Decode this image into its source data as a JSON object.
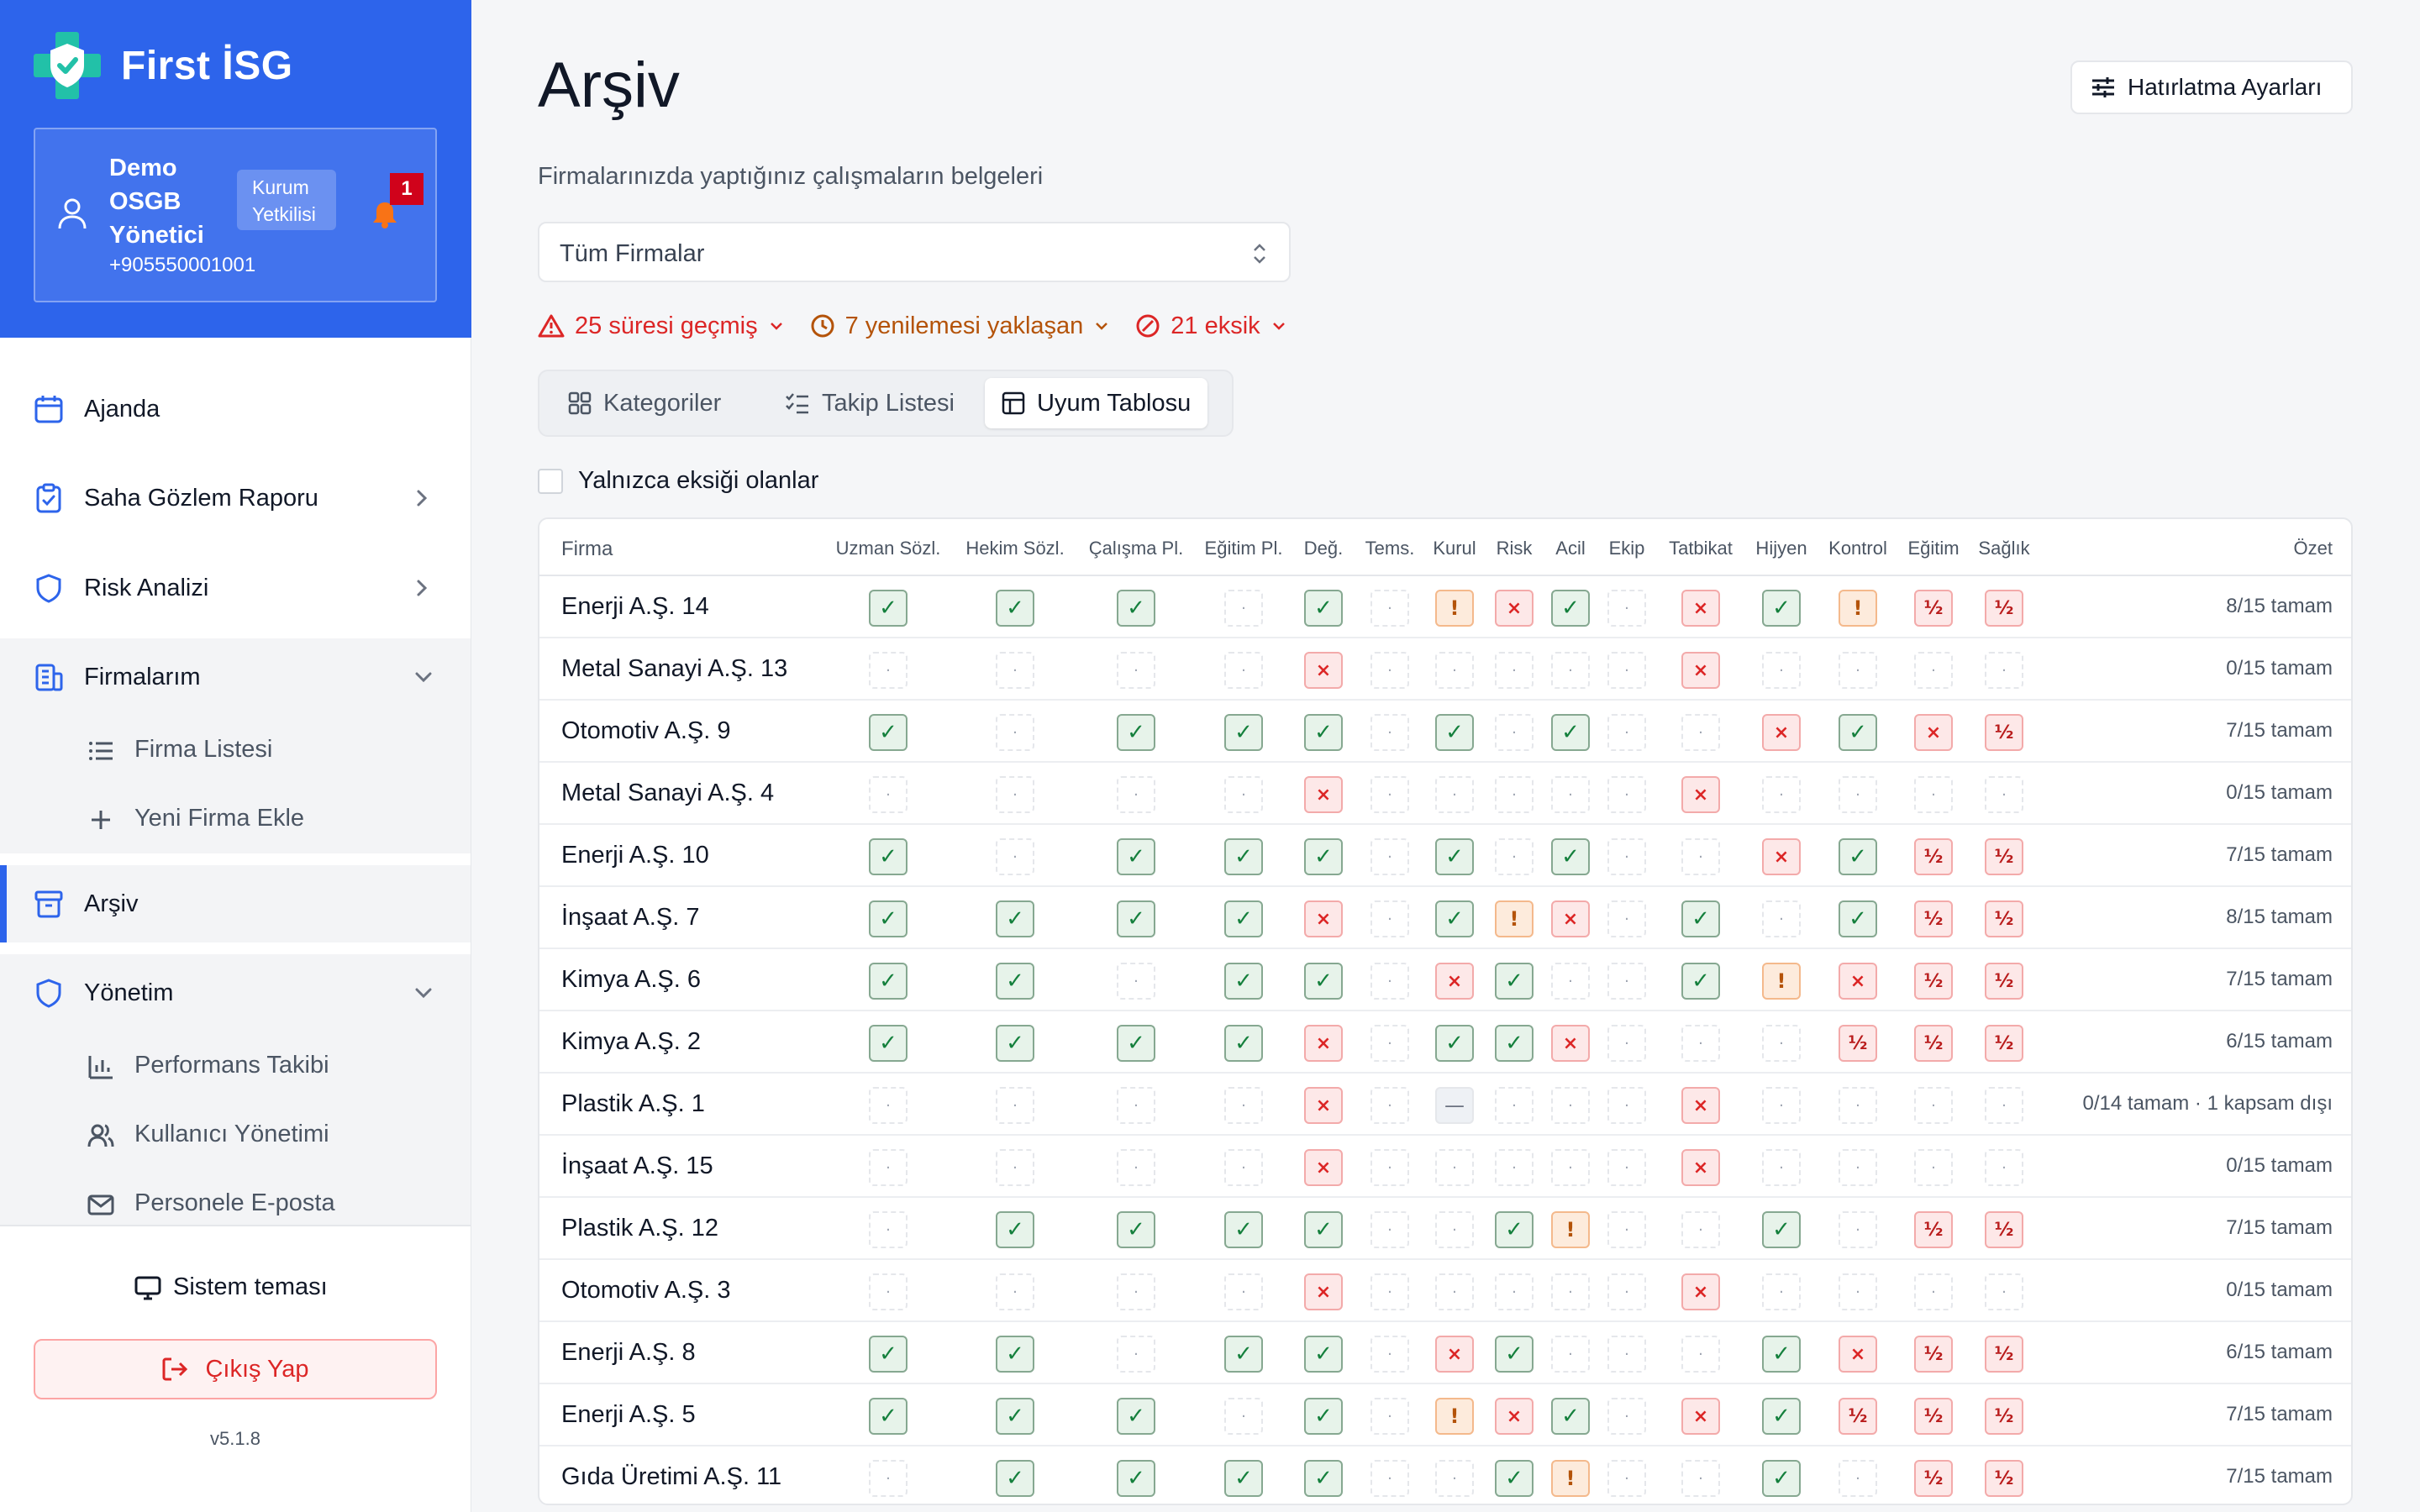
{
  "app": {
    "name": "First İSG",
    "version": "v5.1.8"
  },
  "user": {
    "name": "Demo OSGB Yönetici",
    "role": "Kurum Yetkilisi",
    "phone": "+905550001001",
    "notifications": "1"
  },
  "nav": {
    "ajanda": "Ajanda",
    "saha": "Saha Gözlem Raporu",
    "risk": "Risk Analizi",
    "firmalarim": "Firmalarım",
    "firma_listesi": "Firma Listesi",
    "yeni_firma": "Yeni Firma Ekle",
    "arsiv": "Arşiv",
    "yonetim": "Yönetim",
    "performans": "Performans Takibi",
    "kullanici": "Kullanıcı Yönetimi",
    "eposta": "Personele E-posta"
  },
  "bottom": {
    "theme": "Sistem teması",
    "logout": "Çıkış Yap"
  },
  "page": {
    "title": "Arşiv",
    "subtitle": "Firmalarınızda yaptığınız çalışmaların belgeleri",
    "reminder_btn": "Hatırlatma Ayarları",
    "firm_select": "Tüm Firmalar",
    "filters": {
      "expired": "25 süresi geçmiş",
      "upcoming": "7 yenilemesi yaklaşan",
      "missing": "21 eksik"
    },
    "tabs": {
      "categories": "Kategoriler",
      "tracking": "Takip Listesi",
      "compliance": "Uyum Tablosu"
    },
    "only_missing": "Yalnızca eksiği olanlar"
  },
  "colors": {
    "brand": "#2d64eb",
    "danger": "#dc2626",
    "upcoming": "#b45309",
    "ok": "#15803d"
  },
  "table": {
    "firm_header": "Firma",
    "summary_header": "Özet",
    "columns": [
      "Uzman Sözl.",
      "Hekim Sözl.",
      "Çalışma Pl.",
      "Eğitim Pl.",
      "Değ.",
      "Tems.",
      "Kurul",
      "Risk",
      "Acil",
      "Ekip",
      "Tatbikat",
      "Hijyen",
      "Kontrol",
      "Eğitim",
      "Sağlık"
    ],
    "symbols": {
      "ok": "✓",
      "x": "×",
      "warn": "!",
      "half": "½",
      "empty": "·",
      "na": "—"
    },
    "rows": [
      {
        "firm": "Enerji A.Ş. 14",
        "summary": "8/15 tamam",
        "cells": [
          "ok",
          "ok",
          "ok",
          "empty",
          "ok",
          "empty",
          "warn",
          "x",
          "ok",
          "empty",
          "x",
          "ok",
          "warn",
          "half",
          "half"
        ]
      },
      {
        "firm": "Metal Sanayi A.Ş. 13",
        "summary": "0/15 tamam",
        "cells": [
          "empty",
          "empty",
          "empty",
          "empty",
          "x",
          "empty",
          "empty",
          "empty",
          "empty",
          "empty",
          "x",
          "empty",
          "empty",
          "empty",
          "empty"
        ]
      },
      {
        "firm": "Otomotiv A.Ş. 9",
        "summary": "7/15 tamam",
        "cells": [
          "ok",
          "empty",
          "ok",
          "ok",
          "ok",
          "empty",
          "ok",
          "empty",
          "ok",
          "empty",
          "empty",
          "x",
          "ok",
          "x",
          "half"
        ]
      },
      {
        "firm": "Metal Sanayi A.Ş. 4",
        "summary": "0/15 tamam",
        "cells": [
          "empty",
          "empty",
          "empty",
          "empty",
          "x",
          "empty",
          "empty",
          "empty",
          "empty",
          "empty",
          "x",
          "empty",
          "empty",
          "empty",
          "empty"
        ]
      },
      {
        "firm": "Enerji A.Ş. 10",
        "summary": "7/15 tamam",
        "cells": [
          "ok",
          "empty",
          "ok",
          "ok",
          "ok",
          "empty",
          "ok",
          "empty",
          "ok",
          "empty",
          "empty",
          "x",
          "ok",
          "half",
          "half"
        ]
      },
      {
        "firm": "İnşaat A.Ş. 7",
        "summary": "8/15 tamam",
        "cells": [
          "ok",
          "ok",
          "ok",
          "ok",
          "x",
          "empty",
          "ok",
          "warn",
          "x",
          "empty",
          "ok",
          "empty",
          "ok",
          "half",
          "half"
        ]
      },
      {
        "firm": "Kimya A.Ş. 6",
        "summary": "7/15 tamam",
        "cells": [
          "ok",
          "ok",
          "empty",
          "ok",
          "ok",
          "empty",
          "x",
          "ok",
          "empty",
          "empty",
          "ok",
          "warn",
          "x",
          "half",
          "half"
        ]
      },
      {
        "firm": "Kimya A.Ş. 2",
        "summary": "6/15 tamam",
        "cells": [
          "ok",
          "ok",
          "ok",
          "ok",
          "x",
          "empty",
          "ok",
          "ok",
          "x",
          "empty",
          "empty",
          "empty",
          "half",
          "half",
          "half"
        ]
      },
      {
        "firm": "Plastik A.Ş. 1",
        "summary": "0/14 tamam · 1 kapsam dışı",
        "cells": [
          "empty",
          "empty",
          "empty",
          "empty",
          "x",
          "empty",
          "na",
          "empty",
          "empty",
          "empty",
          "x",
          "empty",
          "empty",
          "empty",
          "empty"
        ]
      },
      {
        "firm": "İnşaat A.Ş. 15",
        "summary": "0/15 tamam",
        "cells": [
          "empty",
          "empty",
          "empty",
          "empty",
          "x",
          "empty",
          "empty",
          "empty",
          "empty",
          "empty",
          "x",
          "empty",
          "empty",
          "empty",
          "empty"
        ]
      },
      {
        "firm": "Plastik A.Ş. 12",
        "summary": "7/15 tamam",
        "cells": [
          "empty",
          "ok",
          "ok",
          "ok",
          "ok",
          "empty",
          "empty",
          "ok",
          "warn",
          "empty",
          "empty",
          "ok",
          "empty",
          "half",
          "half"
        ]
      },
      {
        "firm": "Otomotiv A.Ş. 3",
        "summary": "0/15 tamam",
        "cells": [
          "empty",
          "empty",
          "empty",
          "empty",
          "x",
          "empty",
          "empty",
          "empty",
          "empty",
          "empty",
          "x",
          "empty",
          "empty",
          "empty",
          "empty"
        ]
      },
      {
        "firm": "Enerji A.Ş. 8",
        "summary": "6/15 tamam",
        "cells": [
          "ok",
          "ok",
          "empty",
          "ok",
          "ok",
          "empty",
          "x",
          "ok",
          "empty",
          "empty",
          "empty",
          "ok",
          "x",
          "half",
          "half"
        ]
      },
      {
        "firm": "Enerji A.Ş. 5",
        "summary": "7/15 tamam",
        "cells": [
          "ok",
          "ok",
          "ok",
          "empty",
          "ok",
          "empty",
          "warn",
          "x",
          "ok",
          "empty",
          "x",
          "ok",
          "half",
          "half",
          "half"
        ]
      },
      {
        "firm": "Gıda Üretimi A.Ş. 11",
        "summary": "7/15 tamam",
        "cells": [
          "empty",
          "ok",
          "ok",
          "ok",
          "ok",
          "empty",
          "empty",
          "ok",
          "warn",
          "empty",
          "empty",
          "ok",
          "empty",
          "half",
          "half"
        ]
      }
    ]
  }
}
